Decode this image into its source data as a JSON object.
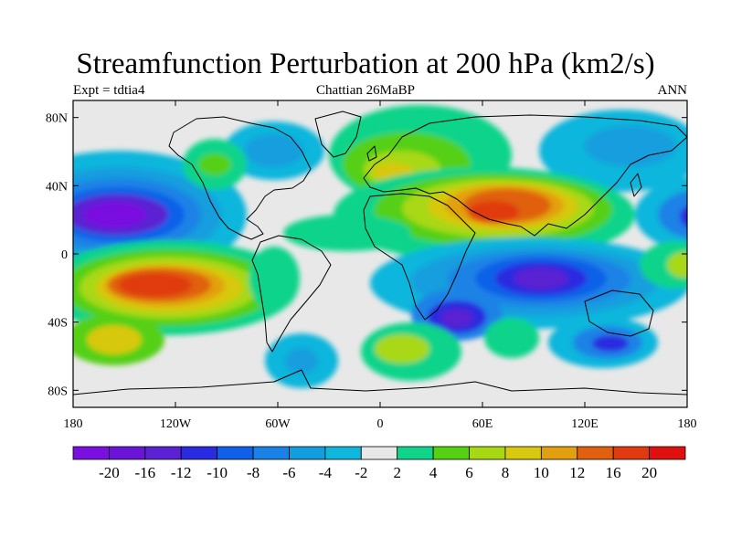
{
  "title": "Streamfunction Perturbation at 200 hPa (km2/s)",
  "left_label": "Expt = tdtia4",
  "center_label": "Chattian  26MaBP",
  "right_label": "ANN",
  "map": {
    "projection": "cylindrical-equidistant",
    "lon_range": [
      -180,
      180
    ],
    "lat_range": [
      -90,
      90
    ],
    "background": "#e8e8e8",
    "lat_ticks": [
      {
        "lat": 80,
        "label": "80N"
      },
      {
        "lat": 40,
        "label": "40N"
      },
      {
        "lat": 0,
        "label": "0"
      },
      {
        "lat": -40,
        "label": "40S"
      },
      {
        "lat": -80,
        "label": "80S"
      }
    ],
    "lon_ticks": [
      {
        "lon": -180,
        "label": "180"
      },
      {
        "lon": -120,
        "label": "120W"
      },
      {
        "lon": -60,
        "label": "60W"
      },
      {
        "lon": 0,
        "label": "0"
      },
      {
        "lon": 60,
        "label": "60E"
      },
      {
        "lon": 120,
        "label": "120E"
      },
      {
        "lon": 180,
        "label": "180"
      }
    ]
  },
  "colorbar": {
    "colors": [
      "#7a10e0",
      "#6a14d8",
      "#5a22d2",
      "#2a2ae0",
      "#1060e8",
      "#1a82e6",
      "#129ede",
      "#10b6dc",
      "#e8e8e8",
      "#10d48a",
      "#55d012",
      "#a8d812",
      "#d8c810",
      "#e2a010",
      "#e06010",
      "#e03a10",
      "#e01010"
    ],
    "labels": [
      "-20",
      "-16",
      "-12",
      "-10",
      "-8",
      "-6",
      "-4",
      "-2",
      "2",
      "4",
      "6",
      "8",
      "10",
      "12",
      "16",
      "20"
    ]
  }
}
